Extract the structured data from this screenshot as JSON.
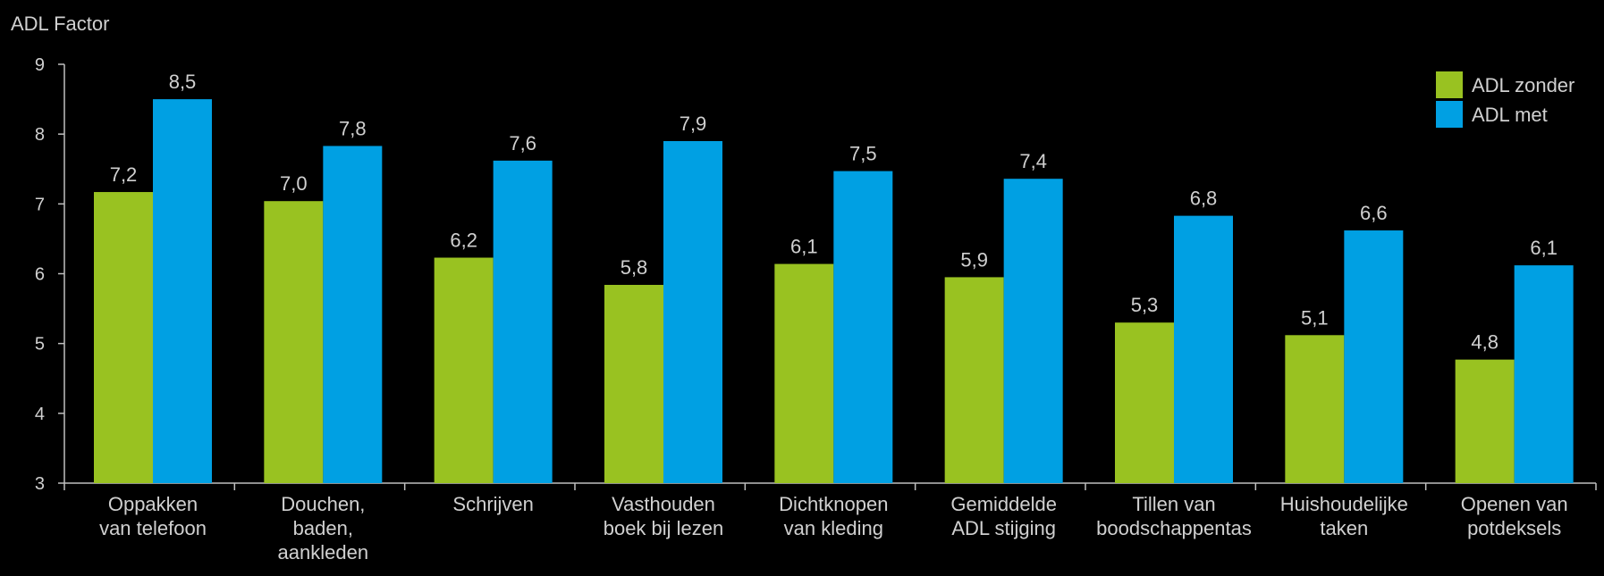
{
  "chart_data": {
    "type": "bar",
    "ylabel": "ADL Factor",
    "ylim": [
      3,
      9
    ],
    "yticks": [
      3,
      4,
      5,
      6,
      7,
      8,
      9
    ],
    "legend": "top-right",
    "grid": false,
    "categories": [
      [
        "Oppakken",
        "van telefoon"
      ],
      [
        "Douchen,",
        "baden,",
        "aankleden"
      ],
      [
        "Schrijven"
      ],
      [
        "Vasthouden",
        "boek bij lezen"
      ],
      [
        "Dichtknopen",
        "van kleding"
      ],
      [
        "Gemiddelde",
        "ADL stijging"
      ],
      [
        "Tillen van",
        "boodschappentas"
      ],
      [
        "Huishoudelijke",
        "taken"
      ],
      [
        "Openen van",
        "potdeksels"
      ]
    ],
    "series": [
      {
        "name": "ADL zonder",
        "color": "#99c221",
        "values": [
          7.17,
          7.04,
          6.23,
          5.84,
          6.14,
          5.95,
          5.3,
          5.12,
          4.77
        ],
        "labels": [
          "7,2",
          "7,0",
          "6,2",
          "5,8",
          "6,1",
          "5,9",
          "5,3",
          "5,1",
          "4,8"
        ]
      },
      {
        "name": "ADL met",
        "color": "#00a0e3",
        "values": [
          8.5,
          7.83,
          7.62,
          7.9,
          7.47,
          7.36,
          6.83,
          6.62,
          6.12
        ],
        "labels": [
          "8,5",
          "7,8",
          "7,6",
          "7,9",
          "7,5",
          "7,4",
          "6,8",
          "6,6",
          "6,1"
        ]
      }
    ]
  }
}
